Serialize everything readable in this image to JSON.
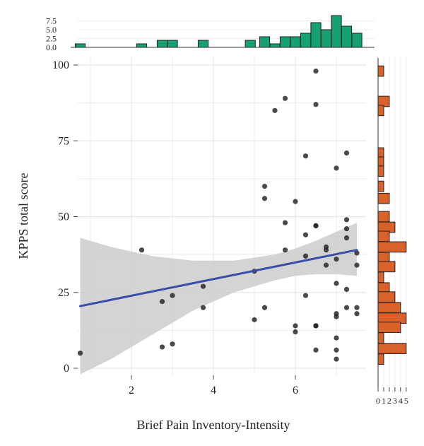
{
  "chart_data": {
    "type": "scatter",
    "xlabel": "Brief Pain Inventory-Intensity",
    "ylabel": "KPPS total score",
    "xlim": [
      0.5,
      7.8
    ],
    "ylim": [
      -2,
      103
    ],
    "x_ticks": [
      2,
      4,
      6
    ],
    "y_ticks": [
      0,
      25,
      50,
      75,
      100
    ],
    "grid": true,
    "colors": {
      "points": "#222222",
      "fit_line": "#3a4ea8",
      "confidence_band": "#cccccc",
      "top_histogram": "#17a070",
      "right_histogram": "#d9622b",
      "grid": "#e6e6e6"
    },
    "points": [
      {
        "x": 0.75,
        "y": 5
      },
      {
        "x": 2.25,
        "y": 39
      },
      {
        "x": 2.75,
        "y": 22
      },
      {
        "x": 2.75,
        "y": 7
      },
      {
        "x": 3.0,
        "y": 24
      },
      {
        "x": 3.0,
        "y": 8
      },
      {
        "x": 3.75,
        "y": 27
      },
      {
        "x": 3.75,
        "y": 20
      },
      {
        "x": 5.0,
        "y": 32
      },
      {
        "x": 5.0,
        "y": 16
      },
      {
        "x": 5.25,
        "y": 60
      },
      {
        "x": 5.25,
        "y": 56
      },
      {
        "x": 5.25,
        "y": 20
      },
      {
        "x": 5.5,
        "y": 85
      },
      {
        "x": 5.75,
        "y": 89
      },
      {
        "x": 5.75,
        "y": 48
      },
      {
        "x": 5.75,
        "y": 39
      },
      {
        "x": 6.0,
        "y": 55
      },
      {
        "x": 6.0,
        "y": 14
      },
      {
        "x": 6.0,
        "y": 12
      },
      {
        "x": 6.25,
        "y": 70
      },
      {
        "x": 6.25,
        "y": 44
      },
      {
        "x": 6.25,
        "y": 37
      },
      {
        "x": 6.25,
        "y": 24
      },
      {
        "x": 6.5,
        "y": 98
      },
      {
        "x": 6.5,
        "y": 87
      },
      {
        "x": 6.5,
        "y": 47
      },
      {
        "x": 6.5,
        "y": 47
      },
      {
        "x": 6.5,
        "y": 14
      },
      {
        "x": 6.5,
        "y": 14
      },
      {
        "x": 6.5,
        "y": 6
      },
      {
        "x": 6.75,
        "y": 40
      },
      {
        "x": 6.75,
        "y": 39
      },
      {
        "x": 6.75,
        "y": 34
      },
      {
        "x": 7.0,
        "y": 66
      },
      {
        "x": 7.0,
        "y": 36
      },
      {
        "x": 7.0,
        "y": 28
      },
      {
        "x": 7.0,
        "y": 18
      },
      {
        "x": 7.0,
        "y": 17
      },
      {
        "x": 7.0,
        "y": 10
      },
      {
        "x": 7.0,
        "y": 6
      },
      {
        "x": 7.0,
        "y": 3
      },
      {
        "x": 7.25,
        "y": 71
      },
      {
        "x": 7.25,
        "y": 49
      },
      {
        "x": 7.25,
        "y": 46
      },
      {
        "x": 7.25,
        "y": 43
      },
      {
        "x": 7.25,
        "y": 26
      },
      {
        "x": 7.25,
        "y": 20
      },
      {
        "x": 7.5,
        "y": 38
      },
      {
        "x": 7.5,
        "y": 34
      },
      {
        "x": 7.5,
        "y": 20
      },
      {
        "x": 7.5,
        "y": 18
      }
    ],
    "fit": {
      "x": [
        0.75,
        7.5
      ],
      "y": [
        20.5,
        39
      ]
    },
    "confidence_band": {
      "x": [
        0.75,
        1.5,
        2.5,
        3.5,
        4.5,
        5.5,
        6.0,
        6.5,
        7.0,
        7.5
      ],
      "upper": [
        43,
        40,
        37,
        35.5,
        35.5,
        37.5,
        39.5,
        42,
        45,
        48
      ],
      "lower": [
        -2,
        3,
        11,
        19,
        25,
        29,
        30.5,
        31,
        31,
        30.5
      ]
    },
    "top_histogram": {
      "axis_ticks": [
        "0.0",
        "2.5",
        "5.0",
        "7.5"
      ],
      "ylim": [
        0,
        9
      ],
      "bins_x": [
        0.75,
        2.25,
        2.75,
        3.0,
        3.75,
        4.9,
        5.25,
        5.5,
        5.75,
        6.0,
        6.25,
        6.5,
        6.75,
        7.0,
        7.25,
        7.5
      ],
      "counts": [
        1,
        1,
        2,
        2,
        2,
        2,
        3,
        1,
        3,
        3,
        4,
        7,
        5,
        9,
        6,
        4
      ]
    },
    "right_histogram": {
      "axis_ticks": [
        "0",
        "1",
        "2",
        "3",
        "4",
        "5"
      ],
      "xlim": [
        0,
        5.4
      ],
      "bins_y": [
        98,
        88,
        85,
        71,
        68,
        65,
        60,
        56,
        50,
        46.5,
        43.5,
        40,
        36.5,
        33.5,
        30,
        26.5,
        23.5,
        20,
        16.5,
        13.5,
        10,
        6.5,
        3
      ],
      "counts": [
        1,
        2,
        1,
        1,
        1,
        1,
        1,
        2,
        2,
        3,
        2,
        5,
        2,
        3,
        1,
        2,
        3,
        4,
        5,
        4,
        1,
        5,
        1
      ]
    }
  }
}
